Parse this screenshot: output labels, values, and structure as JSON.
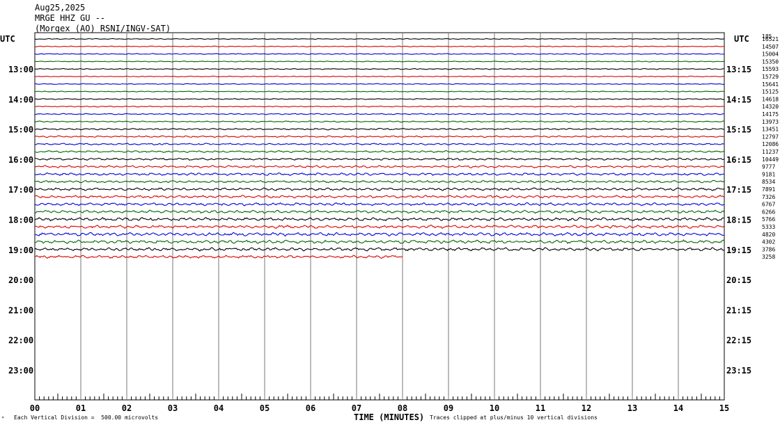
{
  "header": {
    "date": "Aug25,2025",
    "station": "MRGE HHZ GU --",
    "network": "(Morgex (AO) RSNI/INGV-SAT)"
  },
  "footer": {
    "mark": "ᴹ",
    "scale_note": "Each Vertical Division =  500.00 microvolts",
    "x_title": "TIME (MINUTES)",
    "clip_note": "Traces clipped at plus/minus 10 vertical divisions"
  },
  "chart_data": {
    "type": "line",
    "title": "MRGE HHZ GU --",
    "xlabel": "TIME (MINUTES)",
    "ylabel": "",
    "x_ticks": [
      "00",
      "01",
      "02",
      "03",
      "04",
      "05",
      "06",
      "07",
      "08",
      "09",
      "10",
      "11",
      "12",
      "13",
      "14",
      "15"
    ],
    "xlim": [
      0,
      15
    ],
    "left_axis_title": "UTC",
    "right_axis_title": "UTC",
    "left_hour_labels": [
      "13:00",
      "14:00",
      "15:00",
      "16:00",
      "17:00",
      "18:00",
      "19:00",
      "20:00",
      "21:00",
      "22:00",
      "23:00"
    ],
    "right_hour_labels": [
      "13:15",
      "14:15",
      "15:15",
      "16:15",
      "17:15",
      "18:15",
      "19:15",
      "20:15",
      "21:15",
      "22:15",
      "23:15"
    ],
    "trace_colors": [
      "#000000",
      "#dd0000",
      "#0000dd",
      "#006600"
    ],
    "grid": true,
    "traces": [
      {
        "start": "12:15",
        "count": "16521",
        "amp": 0.5
      },
      {
        "start": "12:30",
        "count": "14507",
        "amp": 0.5
      },
      {
        "start": "12:45",
        "count": "15004",
        "amp": 0.6
      },
      {
        "start": "13:00",
        "count": "15350",
        "amp": 0.5
      },
      {
        "start": "13:15",
        "count": "15593",
        "amp": 0.6
      },
      {
        "start": "13:30",
        "count": "15729",
        "amp": 0.5
      },
      {
        "start": "13:45",
        "count": "15641",
        "amp": 0.5
      },
      {
        "start": "14:00",
        "count": "15125",
        "amp": 0.5
      },
      {
        "start": "14:15",
        "count": "14618",
        "amp": 0.6
      },
      {
        "start": "14:30",
        "count": "14320",
        "amp": 0.6
      },
      {
        "start": "14:45",
        "count": "14175",
        "amp": 0.7
      },
      {
        "start": "15:00",
        "count": "13973",
        "amp": 0.7
      },
      {
        "start": "15:15",
        "count": "13451",
        "amp": 0.9
      },
      {
        "start": "15:30",
        "count": "12797",
        "amp": 0.9
      },
      {
        "start": "15:45",
        "count": "12086",
        "amp": 1.0
      },
      {
        "start": "16:00",
        "count": "11237",
        "amp": 1.1
      },
      {
        "start": "16:15",
        "count": "10449",
        "amp": 1.2
      },
      {
        "start": "16:30",
        "count": "9777",
        "amp": 1.3
      },
      {
        "start": "16:45",
        "count": "9181",
        "amp": 1.4
      },
      {
        "start": "17:00",
        "count": "8534",
        "amp": 1.4
      },
      {
        "start": "17:15",
        "count": "7891",
        "amp": 1.5
      },
      {
        "start": "17:30",
        "count": "7326",
        "amp": 1.5
      },
      {
        "start": "17:45",
        "count": "6767",
        "amp": 1.6
      },
      {
        "start": "18:00",
        "count": "6266",
        "amp": 1.7
      },
      {
        "start": "18:15",
        "count": "5766",
        "amp": 1.8
      },
      {
        "start": "18:30",
        "count": "5333",
        "amp": 1.8
      },
      {
        "start": "18:45",
        "count": "4820",
        "amp": 1.9
      },
      {
        "start": "19:00",
        "count": "4302",
        "amp": 1.9
      },
      {
        "start": "19:15",
        "count": "3786",
        "amp": 1.8
      },
      {
        "start": "19:30",
        "count": "3258",
        "amp": 1.6,
        "end_minute": 8.0
      }
    ],
    "top_right_count": "185"
  }
}
